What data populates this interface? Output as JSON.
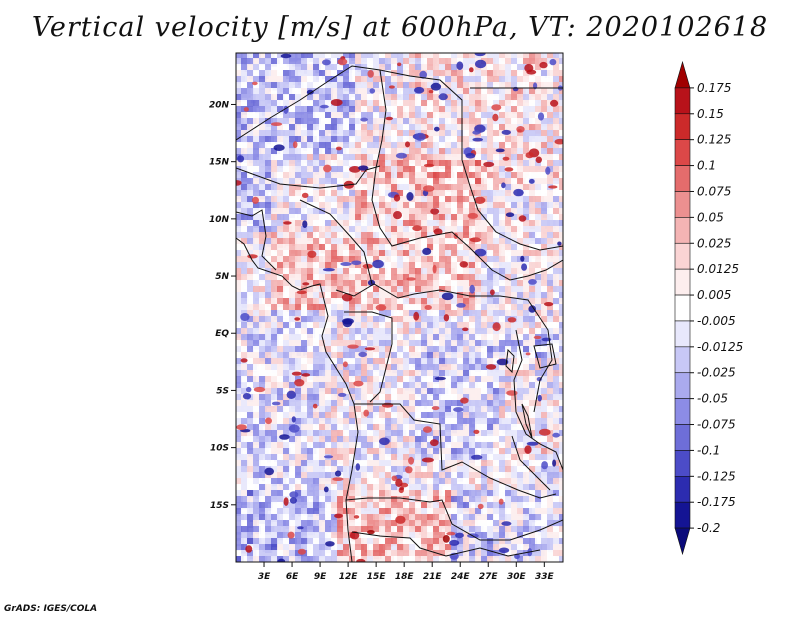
{
  "chart_data": {
    "type": "heatmap",
    "title": "Vertical velocity [m/s] at 600hPa, VT: 2020102618",
    "variable": "Vertical velocity",
    "units": "m/s",
    "level": "600hPa",
    "valid_time": "2020102618",
    "x_range": [
      0,
      35
    ],
    "y_range": [
      -20,
      24.5
    ],
    "x_ticks": [
      {
        "value": 3,
        "label": "3E"
      },
      {
        "value": 6,
        "label": "6E"
      },
      {
        "value": 9,
        "label": "9E"
      },
      {
        "value": 12,
        "label": "12E"
      },
      {
        "value": 15,
        "label": "15E"
      },
      {
        "value": 18,
        "label": "18E"
      },
      {
        "value": 21,
        "label": "21E"
      },
      {
        "value": 24,
        "label": "24E"
      },
      {
        "value": 27,
        "label": "27E"
      },
      {
        "value": 30,
        "label": "30E"
      },
      {
        "value": 33,
        "label": "33E"
      }
    ],
    "y_ticks": [
      {
        "value": 20,
        "label": "20N"
      },
      {
        "value": 15,
        "label": "15N"
      },
      {
        "value": 10,
        "label": "10N"
      },
      {
        "value": 5,
        "label": "5N"
      },
      {
        "value": 0,
        "label": "EQ"
      },
      {
        "value": -5,
        "label": "5S"
      },
      {
        "value": -10,
        "label": "10S"
      },
      {
        "value": -15,
        "label": "15S"
      }
    ],
    "colorbar": {
      "levels": [
        "0.175",
        "0.15",
        "0.125",
        "0.1",
        "0.075",
        "0.05",
        "0.025",
        "0.0125",
        "0.005",
        "-0.005",
        "-0.0125",
        "-0.025",
        "-0.05",
        "-0.075",
        "-0.1",
        "-0.125",
        "-0.175",
        "-0.2"
      ],
      "colors": [
        "#a00000",
        "#b8121a",
        "#cc2a2a",
        "#dc4848",
        "#e46c6c",
        "#ec9090",
        "#f4b4b4",
        "#fad4d4",
        "#fdeeee",
        "#ffffff",
        "#e8e8fc",
        "#c8c8f6",
        "#aaaaee",
        "#8c8ce6",
        "#6e6ed8",
        "#4c4cc8",
        "#2c2cb0",
        "#141494",
        "#0a0a7a"
      ]
    }
  },
  "credit": "GrADS: IGES/COLA"
}
